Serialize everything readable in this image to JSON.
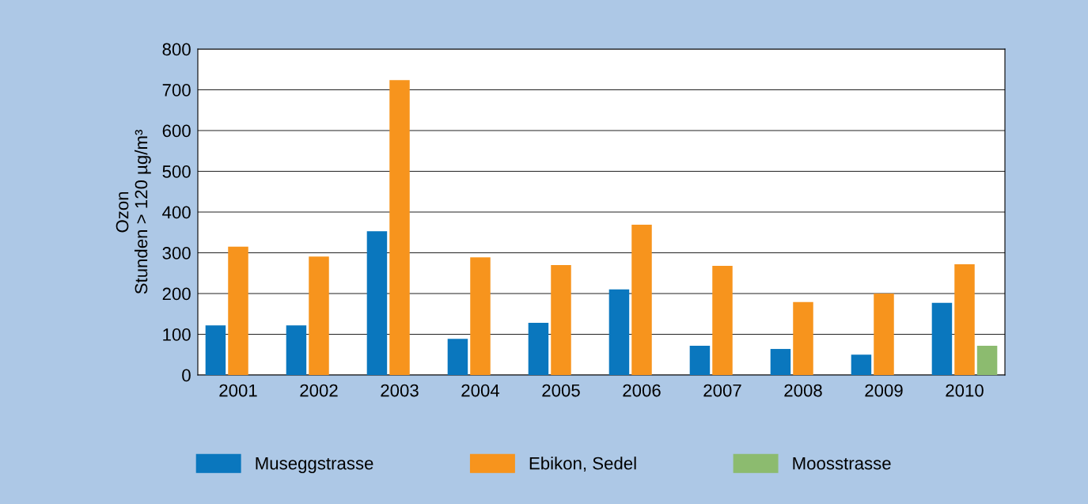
{
  "chart_data": {
    "type": "bar",
    "ylabel": "Ozon\nStunden > 120 µg/m³",
    "categories": [
      "2001",
      "2002",
      "2003",
      "2004",
      "2005",
      "2006",
      "2007",
      "2008",
      "2009",
      "2010"
    ],
    "series": [
      {
        "name": "Museggstrasse",
        "color": "#0a77be",
        "values": [
          122,
          122,
          353,
          89,
          128,
          210,
          72,
          64,
          50,
          177
        ]
      },
      {
        "name": "Ebikon, Sedel",
        "color": "#f7941d",
        "values": [
          315,
          291,
          724,
          289,
          270,
          369,
          268,
          179,
          200,
          272
        ]
      },
      {
        "name": "Moosstrasse",
        "color": "#8cbb6f",
        "values": [
          0,
          0,
          0,
          0,
          0,
          0,
          0,
          0,
          0,
          72
        ]
      }
    ],
    "ylim": [
      0,
      800
    ],
    "yticks": [
      0,
      100,
      200,
      300,
      400,
      500,
      600,
      700,
      800
    ],
    "grid": "y",
    "legend": "bottom"
  }
}
